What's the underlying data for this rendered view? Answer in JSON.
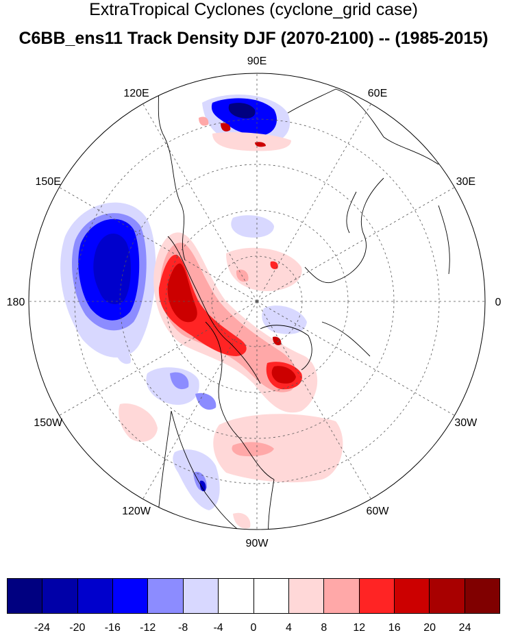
{
  "title_line1": "ExtraTropical Cyclones (cyclone_grid case)",
  "title_line2": "C6BB_ens11 Track Density DJF (2070-2100) -- (1985-2015)",
  "longitude_labels": [
    {
      "text": "90E",
      "angle": 0
    },
    {
      "text": "60E",
      "angle": 30
    },
    {
      "text": "30E",
      "angle": 60
    },
    {
      "text": "0",
      "angle": 90
    },
    {
      "text": "30W",
      "angle": 120
    },
    {
      "text": "60W",
      "angle": 150
    },
    {
      "text": "90W",
      "angle": 180
    },
    {
      "text": "120W",
      "angle": 210
    },
    {
      "text": "150W",
      "angle": 240
    },
    {
      "text": "180",
      "angle": 270
    },
    {
      "text": "150E",
      "angle": 300
    },
    {
      "text": "120E",
      "angle": 330
    }
  ],
  "colorbar": {
    "colors": [
      "#000080",
      "#0000a8",
      "#0000cc",
      "#0000ff",
      "#8c8cff",
      "#d8d8ff",
      "#ffffff",
      "#ffffff",
      "#ffd8d8",
      "#ffa8a8",
      "#ff2424",
      "#cc0000",
      "#a80000",
      "#800000"
    ],
    "labels": [
      "-24",
      "-20",
      "-16",
      "-12",
      "-8",
      "-4",
      "0",
      "4",
      "8",
      "12",
      "16",
      "20",
      "24"
    ]
  },
  "colors": {
    "neg_deep": "#000080",
    "neg_strong": "#0000cc",
    "neg_mid": "#8c8cff",
    "neg_light": "#d8d8ff",
    "pos_light": "#ffd8d8",
    "pos_mid": "#ffa8a8",
    "pos_strong": "#ff2424",
    "pos_deep": "#a80000"
  }
}
